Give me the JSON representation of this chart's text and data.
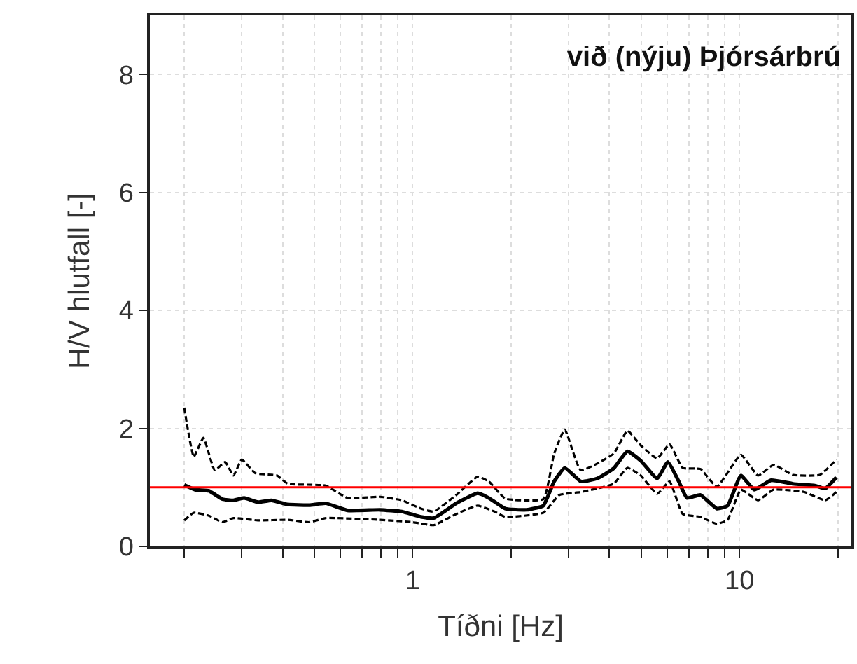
{
  "chart_data": {
    "type": "line",
    "title": "við (nýju) Þjórsárbrú",
    "xlabel": "Tíðni [Hz]",
    "ylabel": "H/V hlutfall [-]",
    "log": "x",
    "grid": true,
    "marker": "none",
    "xlim": [
      0.157,
      22
    ],
    "ylim": [
      0,
      9
    ],
    "xticks": [
      {
        "value": 0.2,
        "label": null
      },
      {
        "value": 0.3,
        "label": null
      },
      {
        "value": 0.4,
        "label": null
      },
      {
        "value": 0.5,
        "label": null
      },
      {
        "value": 0.6,
        "label": null
      },
      {
        "value": 0.7,
        "label": null
      },
      {
        "value": 0.8,
        "label": null
      },
      {
        "value": 0.9,
        "label": null
      },
      1,
      {
        "value": 2,
        "label": null
      },
      {
        "value": 3,
        "label": null
      },
      {
        "value": 4,
        "label": null
      },
      {
        "value": 5,
        "label": null
      },
      {
        "value": 6,
        "label": null
      },
      {
        "value": 7,
        "label": null
      },
      {
        "value": 8,
        "label": null
      },
      {
        "value": 9,
        "label": null
      },
      10,
      {
        "value": 20,
        "label": null
      }
    ],
    "yticks": [
      0,
      2,
      4,
      6,
      8
    ],
    "ref_lines": [
      {
        "axis": "y",
        "value": 1,
        "color": "#ff0000",
        "line_style": "solid"
      }
    ],
    "series": [
      {
        "color": "#000000",
        "line_style": "solid",
        "x": [
          0.2,
          0.216,
          0.238,
          0.262,
          0.283,
          0.305,
          0.336,
          0.37,
          0.415,
          0.483,
          0.542,
          0.632,
          0.795,
          0.927,
          1.06,
          1.16,
          1.36,
          1.58,
          1.71,
          1.92,
          2.23,
          2.51,
          2.71,
          2.92,
          3.27,
          3.67,
          4.12,
          4.54,
          4.99,
          5.6,
          6.04,
          6.52,
          6.91,
          7.6,
          8.53,
          9.2,
          10.1,
          11.1,
          12.5,
          14.6,
          17.0,
          18.3,
          19.8
        ],
        "values": [
          1.04,
          0.96,
          0.94,
          0.8,
          0.78,
          0.82,
          0.75,
          0.78,
          0.71,
          0.7,
          0.73,
          0.61,
          0.62,
          0.59,
          0.5,
          0.48,
          0.73,
          0.9,
          0.82,
          0.64,
          0.62,
          0.69,
          1.1,
          1.33,
          1.1,
          1.15,
          1.32,
          1.61,
          1.45,
          1.15,
          1.43,
          1.1,
          0.82,
          0.87,
          0.64,
          0.69,
          1.2,
          0.96,
          1.12,
          1.06,
          1.03,
          0.98,
          1.17
        ]
      },
      {
        "color": "#000000",
        "line_style": "dashed",
        "x": [
          0.2,
          0.214,
          0.229,
          0.248,
          0.267,
          0.283,
          0.3,
          0.33,
          0.385,
          0.415,
          0.542,
          0.632,
          0.795,
          0.927,
          1.06,
          1.16,
          1.36,
          1.58,
          1.71,
          1.92,
          2.51,
          2.71,
          2.92,
          3.27,
          4.12,
          4.54,
          4.99,
          5.6,
          6.11,
          6.7,
          7.6,
          8.53,
          10.1,
          11.4,
          12.7,
          14.6,
          17.6,
          19.8
        ],
        "values": [
          2.35,
          1.52,
          1.84,
          1.29,
          1.43,
          1.2,
          1.47,
          1.24,
          1.2,
          1.06,
          1.03,
          0.82,
          0.84,
          0.78,
          0.64,
          0.59,
          0.87,
          1.18,
          1.1,
          0.81,
          0.8,
          1.57,
          1.98,
          1.29,
          1.57,
          1.96,
          1.71,
          1.49,
          1.73,
          1.33,
          1.31,
          1.01,
          1.55,
          1.2,
          1.38,
          1.21,
          1.21,
          1.47
        ]
      },
      {
        "color": "#000000",
        "line_style": "dashed",
        "x": [
          0.2,
          0.214,
          0.238,
          0.262,
          0.283,
          0.336,
          0.415,
          0.483,
          0.542,
          0.795,
          1.0,
          1.16,
          1.36,
          1.58,
          1.78,
          1.92,
          2.51,
          2.81,
          3.27,
          4.12,
          4.54,
          4.99,
          5.6,
          6.11,
          6.7,
          7.6,
          8.53,
          9.2,
          10.1,
          11.4,
          12.7,
          15.8,
          18.3,
          19.8
        ],
        "values": [
          0.44,
          0.57,
          0.52,
          0.41,
          0.48,
          0.44,
          0.45,
          0.41,
          0.48,
          0.45,
          0.41,
          0.36,
          0.55,
          0.69,
          0.59,
          0.5,
          0.57,
          0.87,
          0.92,
          1.06,
          1.33,
          1.2,
          0.89,
          1.1,
          0.55,
          0.5,
          0.38,
          0.45,
          0.96,
          0.78,
          0.96,
          0.92,
          0.78,
          0.92
        ]
      }
    ]
  }
}
